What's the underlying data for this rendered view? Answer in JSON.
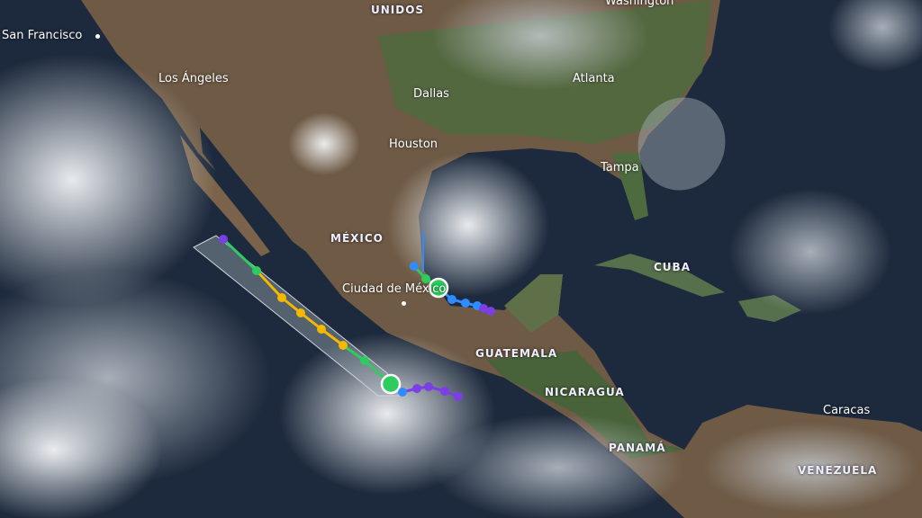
{
  "map": {
    "type": "satellite storm track map",
    "cities": [
      "San Francisco",
      "Los Ángeles",
      "Dallas",
      "Atlanta",
      "Houston",
      "Tampa",
      "Ciudad de México",
      "Caracas",
      "Washington"
    ],
    "countries": [
      "UNIDOS",
      "MÉXICO",
      "CUBA",
      "GUATEMALA",
      "NICARAGUA",
      "PANAMÁ",
      "VENEZUELA"
    ],
    "colors": {
      "track_purple": "#7b3fe4",
      "track_green": "#2ecc5f",
      "track_yellow": "#f5b800",
      "track_blue": "#2f8cff",
      "cone": "#9aa3ad",
      "border": "#dddddd"
    },
    "storms": [
      {
        "side": "pacific",
        "track": [
          "purple",
          "green",
          "yellow",
          "yellow",
          "yellow",
          "yellow",
          "green",
          "green",
          "blue",
          "purple",
          "purple",
          "purple",
          "purple"
        ]
      },
      {
        "side": "gulf",
        "track": [
          "blue",
          "green",
          "green",
          "blue",
          "blue",
          "blue",
          "purple",
          "purple"
        ]
      }
    ]
  }
}
